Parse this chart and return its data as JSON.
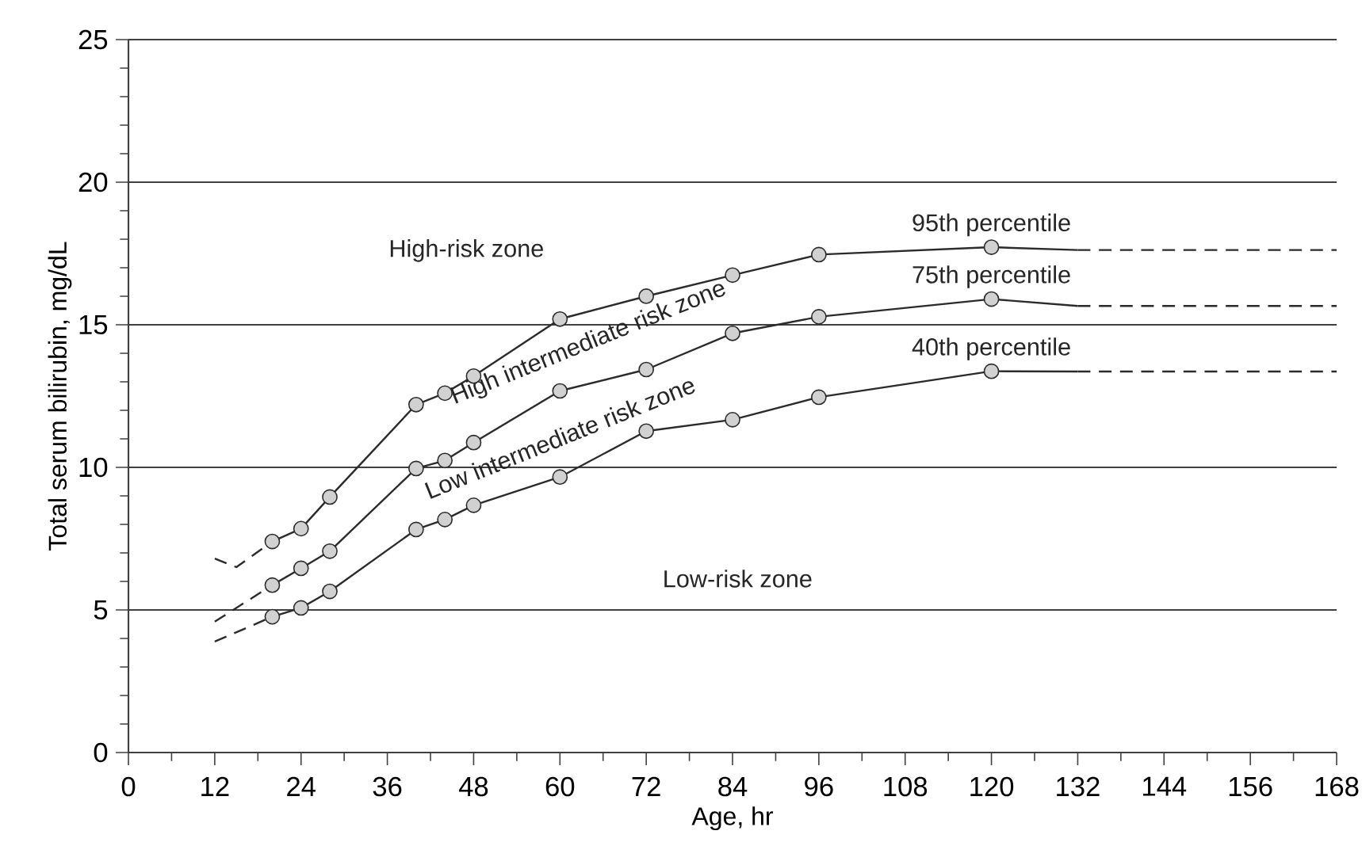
{
  "chart_data": {
    "type": "line",
    "xlabel": "Age, hr",
    "ylabel": "Total serum bilirubin, mg/dL",
    "xlim": [
      0,
      168
    ],
    "ylim": [
      0,
      25
    ],
    "xticks": [
      0,
      12,
      24,
      36,
      48,
      60,
      72,
      84,
      96,
      108,
      120,
      132,
      144,
      156,
      168
    ],
    "yticks": [
      0,
      5,
      10,
      15,
      20,
      25
    ],
    "grid": "y",
    "marker": "circle",
    "line_style": "solid",
    "series": [
      {
        "name": "95th percentile",
        "color": "#2b2b2b",
        "x": [
          20,
          24,
          28,
          40,
          44,
          48,
          60,
          72,
          84,
          96,
          120
        ],
        "values": [
          7.4,
          7.85,
          8.96,
          12.2,
          12.6,
          13.2,
          15.2,
          16.0,
          16.74,
          17.46,
          17.72
        ]
      },
      {
        "name": "75th percentile",
        "color": "#2b2b2b",
        "x": [
          20,
          24,
          28,
          40,
          44,
          48,
          60,
          72,
          84,
          96,
          120
        ],
        "values": [
          5.87,
          6.46,
          7.06,
          9.96,
          10.24,
          10.87,
          12.68,
          13.43,
          14.7,
          15.28,
          15.9
        ]
      },
      {
        "name": "40th percentile",
        "color": "#2b2b2b",
        "x": [
          20,
          24,
          28,
          40,
          44,
          48,
          60,
          72,
          84,
          96,
          120
        ],
        "values": [
          4.76,
          5.07,
          5.65,
          7.82,
          8.17,
          8.67,
          9.66,
          11.27,
          11.67,
          12.46,
          13.37
        ]
      },
      {
        "color": "#2b2b2b",
        "x": [
          120,
          132
        ],
        "values": [
          17.72,
          17.62
        ],
        "marker": "none"
      },
      {
        "color": "#2b2b2b",
        "x": [
          120,
          132
        ],
        "values": [
          15.9,
          15.66
        ],
        "marker": "none"
      },
      {
        "color": "#2b2b2b",
        "x": [
          120,
          132
        ],
        "values": [
          13.37,
          13.36
        ],
        "marker": "none"
      },
      {
        "color": "#2b2b2b",
        "x": [
          132,
          168
        ],
        "values": [
          17.62,
          17.62
        ],
        "marker": "none",
        "line_style": "dashed"
      },
      {
        "color": "#2b2b2b",
        "x": [
          132,
          168
        ],
        "values": [
          15.66,
          15.66
        ],
        "marker": "none",
        "line_style": "dashed"
      },
      {
        "color": "#2b2b2b",
        "x": [
          132,
          168
        ],
        "values": [
          13.36,
          13.36
        ],
        "marker": "none",
        "line_style": "dashed"
      },
      {
        "color": "#2b2b2b",
        "x": [
          12,
          15,
          20
        ],
        "values": [
          6.8,
          6.5,
          7.4
        ],
        "marker": "none",
        "line_style": "dashed"
      },
      {
        "color": "#2b2b2b",
        "x": [
          12,
          20
        ],
        "values": [
          4.59,
          5.87
        ],
        "marker": "none",
        "line_style": "dashed"
      },
      {
        "color": "#2b2b2b",
        "x": [
          12,
          20
        ],
        "values": [
          3.89,
          4.76
        ],
        "marker": "none",
        "line_style": "dashed"
      }
    ],
    "annotations": [
      "High-risk zone",
      "High intermediate risk zone",
      "Low intermediate risk zone",
      "Low-risk zone"
    ]
  }
}
